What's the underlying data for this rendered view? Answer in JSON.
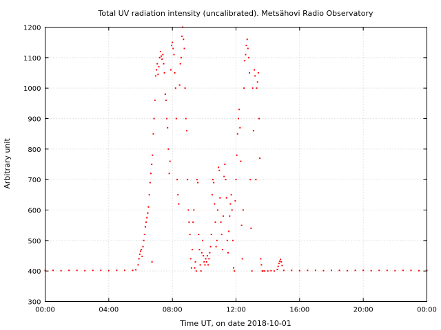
{
  "chart_data": {
    "type": "scatter",
    "title": "Total UV radiation intensity (uncalibrated). Metsähovi Radio Observatory",
    "xlabel": "Time UT, on date 2018-10-01",
    "ylabel": "Arbitrary unit",
    "x_ticks": [
      "00:00",
      "04:00",
      "08:00",
      "12:00",
      "16:00",
      "20:00",
      "00:00"
    ],
    "y_ticks": [
      300,
      400,
      500,
      600,
      700,
      800,
      900,
      1000,
      1100,
      1200
    ],
    "xlim_hours": [
      0,
      24
    ],
    "ylim": [
      300,
      1200
    ],
    "grid": true,
    "series_color": "#ff0000",
    "x_unit": "hours UT",
    "points": [
      [
        0.0,
        402
      ],
      [
        0.5,
        402
      ],
      [
        1.0,
        401
      ],
      [
        1.5,
        402
      ],
      [
        2.0,
        402
      ],
      [
        2.5,
        401
      ],
      [
        3.0,
        402
      ],
      [
        3.5,
        402
      ],
      [
        4.0,
        401
      ],
      [
        4.5,
        402
      ],
      [
        5.0,
        402
      ],
      [
        5.5,
        402
      ],
      [
        5.7,
        404
      ],
      [
        5.85,
        420
      ],
      [
        5.9,
        440
      ],
      [
        5.95,
        455
      ],
      [
        6.0,
        465
      ],
      [
        6.05,
        470
      ],
      [
        6.1,
        448
      ],
      [
        6.15,
        480
      ],
      [
        6.2,
        500
      ],
      [
        6.25,
        520
      ],
      [
        6.3,
        545
      ],
      [
        6.35,
        560
      ],
      [
        6.4,
        575
      ],
      [
        6.45,
        590
      ],
      [
        6.5,
        610
      ],
      [
        6.55,
        650
      ],
      [
        6.6,
        690
      ],
      [
        6.65,
        720
      ],
      [
        6.7,
        750
      ],
      [
        6.72,
        430
      ],
      [
        6.75,
        780
      ],
      [
        6.8,
        850
      ],
      [
        6.85,
        900
      ],
      [
        6.9,
        960
      ],
      [
        6.95,
        1040
      ],
      [
        7.0,
        1060
      ],
      [
        7.05,
        1080
      ],
      [
        7.1,
        1045
      ],
      [
        7.15,
        1070
      ],
      [
        7.2,
        1100
      ],
      [
        7.25,
        1120
      ],
      [
        7.3,
        1105
      ],
      [
        7.35,
        1095
      ],
      [
        7.4,
        1110
      ],
      [
        7.45,
        1080
      ],
      [
        7.5,
        1050
      ],
      [
        7.55,
        980
      ],
      [
        7.6,
        960
      ],
      [
        7.65,
        900
      ],
      [
        7.7,
        870
      ],
      [
        7.75,
        800
      ],
      [
        7.8,
        720
      ],
      [
        7.85,
        760
      ],
      [
        7.9,
        1060
      ],
      [
        7.95,
        1140
      ],
      [
        8.0,
        1150
      ],
      [
        8.05,
        1130
      ],
      [
        8.1,
        1110
      ],
      [
        8.15,
        1050
      ],
      [
        8.2,
        1000
      ],
      [
        8.25,
        900
      ],
      [
        8.3,
        700
      ],
      [
        8.35,
        650
      ],
      [
        8.4,
        620
      ],
      [
        8.45,
        1010
      ],
      [
        8.5,
        1080
      ],
      [
        8.55,
        1100
      ],
      [
        8.6,
        1170
      ],
      [
        8.65,
        1200
      ],
      [
        8.7,
        1160
      ],
      [
        8.75,
        1130
      ],
      [
        8.8,
        1000
      ],
      [
        8.85,
        900
      ],
      [
        8.9,
        860
      ],
      [
        8.95,
        700
      ],
      [
        9.0,
        600
      ],
      [
        9.05,
        560
      ],
      [
        9.1,
        520
      ],
      [
        9.15,
        440
      ],
      [
        9.2,
        410
      ],
      [
        9.25,
        470
      ],
      [
        9.3,
        560
      ],
      [
        9.35,
        600
      ],
      [
        9.4,
        410
      ],
      [
        9.45,
        430
      ],
      [
        9.5,
        400
      ],
      [
        9.55,
        700
      ],
      [
        9.6,
        690
      ],
      [
        9.65,
        520
      ],
      [
        9.7,
        470
      ],
      [
        9.75,
        420
      ],
      [
        9.8,
        400
      ],
      [
        9.85,
        460
      ],
      [
        9.9,
        500
      ],
      [
        9.95,
        450
      ],
      [
        10.0,
        430
      ],
      [
        10.05,
        420
      ],
      [
        10.1,
        440
      ],
      [
        10.15,
        430
      ],
      [
        10.2,
        450
      ],
      [
        10.25,
        420
      ],
      [
        10.3,
        440
      ],
      [
        10.35,
        460
      ],
      [
        10.4,
        480
      ],
      [
        10.45,
        520
      ],
      [
        10.5,
        650
      ],
      [
        10.55,
        700
      ],
      [
        10.6,
        690
      ],
      [
        10.65,
        620
      ],
      [
        10.7,
        560
      ],
      [
        10.75,
        480
      ],
      [
        10.8,
        500
      ],
      [
        10.85,
        600
      ],
      [
        10.9,
        740
      ],
      [
        10.95,
        730
      ],
      [
        11.0,
        640
      ],
      [
        11.05,
        560
      ],
      [
        11.1,
        520
      ],
      [
        11.15,
        470
      ],
      [
        11.2,
        580
      ],
      [
        11.25,
        710
      ],
      [
        11.3,
        750
      ],
      [
        11.35,
        700
      ],
      [
        11.4,
        640
      ],
      [
        11.45,
        500
      ],
      [
        11.5,
        460
      ],
      [
        11.55,
        530
      ],
      [
        11.6,
        580
      ],
      [
        11.65,
        620
      ],
      [
        11.7,
        650
      ],
      [
        11.75,
        600
      ],
      [
        11.8,
        500
      ],
      [
        11.85,
        410
      ],
      [
        11.9,
        400
      ],
      [
        11.95,
        630
      ],
      [
        12.0,
        700
      ],
      [
        12.05,
        780
      ],
      [
        12.1,
        850
      ],
      [
        12.15,
        900
      ],
      [
        12.2,
        930
      ],
      [
        12.25,
        870
      ],
      [
        12.3,
        760
      ],
      [
        12.35,
        550
      ],
      [
        12.4,
        440
      ],
      [
        12.45,
        600
      ],
      [
        12.5,
        1000
      ],
      [
        12.55,
        1090
      ],
      [
        12.6,
        1110
      ],
      [
        12.65,
        1140
      ],
      [
        12.7,
        1160
      ],
      [
        12.75,
        1130
      ],
      [
        12.8,
        1100
      ],
      [
        12.85,
        1050
      ],
      [
        12.9,
        700
      ],
      [
        12.95,
        540
      ],
      [
        13.0,
        400
      ],
      [
        13.05,
        1000
      ],
      [
        13.1,
        860
      ],
      [
        13.15,
        1060
      ],
      [
        13.2,
        1040
      ],
      [
        13.25,
        700
      ],
      [
        13.3,
        1000
      ],
      [
        13.35,
        1020
      ],
      [
        13.4,
        1050
      ],
      [
        13.45,
        900
      ],
      [
        13.5,
        770
      ],
      [
        13.55,
        440
      ],
      [
        13.6,
        420
      ],
      [
        13.65,
        400
      ],
      [
        13.7,
        400
      ],
      [
        13.8,
        400
      ],
      [
        14.0,
        400
      ],
      [
        14.2,
        401
      ],
      [
        14.4,
        400
      ],
      [
        14.6,
        405
      ],
      [
        14.65,
        415
      ],
      [
        14.7,
        425
      ],
      [
        14.75,
        432
      ],
      [
        14.8,
        438
      ],
      [
        14.85,
        430
      ],
      [
        14.9,
        418
      ],
      [
        15.0,
        402
      ],
      [
        15.5,
        402
      ],
      [
        16.0,
        401
      ],
      [
        16.5,
        402
      ],
      [
        17.0,
        402
      ],
      [
        17.5,
        401
      ],
      [
        18.0,
        402
      ],
      [
        18.5,
        402
      ],
      [
        19.0,
        401
      ],
      [
        19.5,
        402
      ],
      [
        20.0,
        402
      ],
      [
        20.5,
        401
      ],
      [
        21.0,
        402
      ],
      [
        21.5,
        402
      ],
      [
        22.0,
        401
      ],
      [
        22.5,
        402
      ],
      [
        23.0,
        402
      ],
      [
        23.5,
        401
      ],
      [
        24.0,
        402
      ]
    ]
  }
}
